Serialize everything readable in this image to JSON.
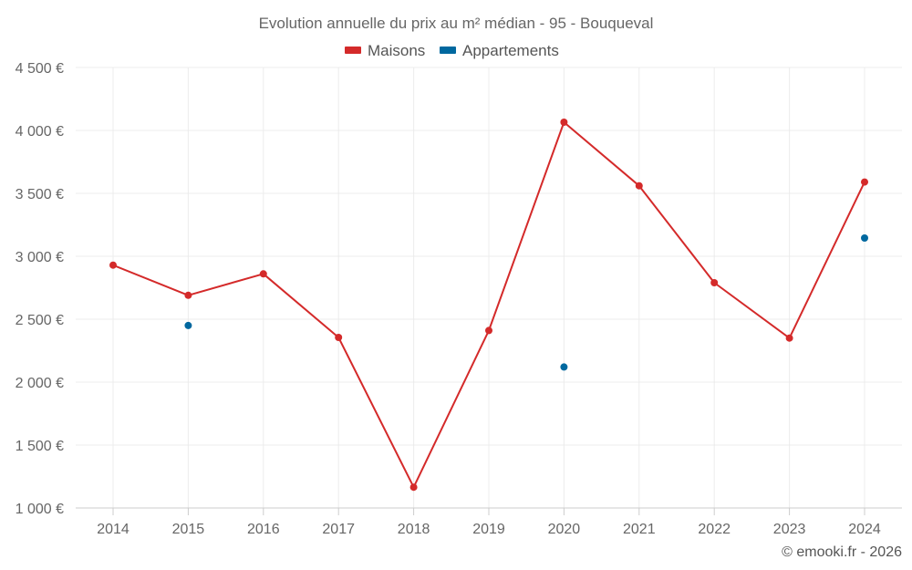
{
  "chart_data": {
    "type": "line",
    "title": "Evolution annuelle du prix au m² médian - 95 - Bouqueval",
    "categories": [
      "2014",
      "2015",
      "2016",
      "2017",
      "2018",
      "2019",
      "2020",
      "2021",
      "2022",
      "2023",
      "2024"
    ],
    "y_ticks": [
      {
        "value": 1000,
        "label": "1 000 €"
      },
      {
        "value": 1500,
        "label": "1 500 €"
      },
      {
        "value": 2000,
        "label": "2 000 €"
      },
      {
        "value": 2500,
        "label": "2 500 €"
      },
      {
        "value": 3000,
        "label": "3 000 €"
      },
      {
        "value": 3500,
        "label": "3 500 €"
      },
      {
        "value": 4000,
        "label": "4 000 €"
      },
      {
        "value": 4500,
        "label": "4 500 €"
      }
    ],
    "ylim": [
      1000,
      4500
    ],
    "grid": true,
    "legend_position": "top-center",
    "series": [
      {
        "name": "Maisons",
        "color": "#d42a2a",
        "line": true,
        "values": [
          2930,
          2690,
          2860,
          2355,
          1165,
          2410,
          4065,
          3560,
          2790,
          2350,
          3590
        ]
      },
      {
        "name": "Appartements",
        "color": "#00689f",
        "line": false,
        "values": [
          null,
          2450,
          null,
          null,
          null,
          null,
          2120,
          null,
          null,
          null,
          3145
        ]
      }
    ],
    "credit": "© emooki.fr - 2026"
  }
}
